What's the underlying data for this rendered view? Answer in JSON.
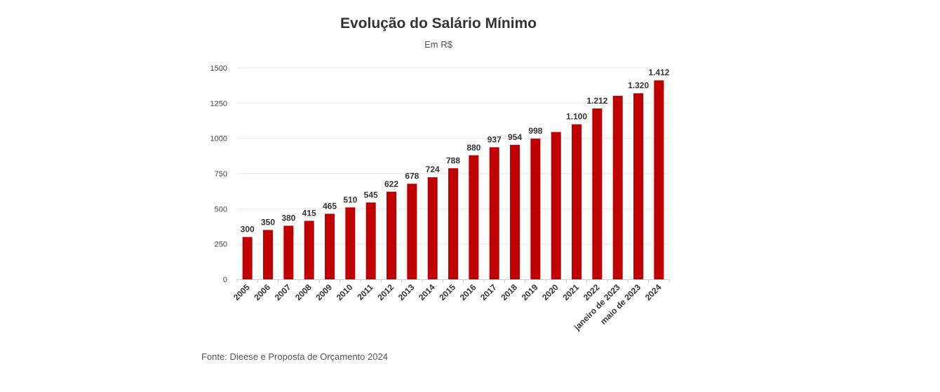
{
  "chart_data": {
    "type": "bar",
    "title": "Evolução do Salário Mínimo",
    "subtitle": "Em R$",
    "xlabel": "",
    "ylabel": "",
    "ylim": [
      0,
      1500
    ],
    "yticks": [
      "0",
      "250",
      "500",
      "750",
      "1000",
      "1250",
      "1500"
    ],
    "grid": true,
    "bar_color": "#c00000",
    "categories": [
      "2005",
      "2006",
      "2007",
      "2008",
      "2009",
      "2010",
      "2011",
      "2012",
      "2013",
      "2014",
      "2015",
      "2016",
      "2017",
      "2018",
      "2019",
      "2020",
      "2021",
      "2022",
      "janeiro de 2023",
      "maio de 2023",
      "2024"
    ],
    "values": [
      300,
      350,
      380,
      415,
      465,
      510,
      545,
      622,
      678,
      724,
      788,
      880,
      937,
      954,
      998,
      1045,
      1100,
      1212,
      1302,
      1320,
      1412
    ],
    "data_labels": [
      "300",
      "350",
      "380",
      "415",
      "465",
      "510",
      "545",
      "622",
      "678",
      "724",
      "788",
      "880",
      "937",
      "954",
      "998",
      "",
      "1.100",
      "1.212",
      "",
      "1.320",
      "1.412"
    ]
  },
  "source": "Fonte: Dieese e Proposta de Orçamento 2024"
}
